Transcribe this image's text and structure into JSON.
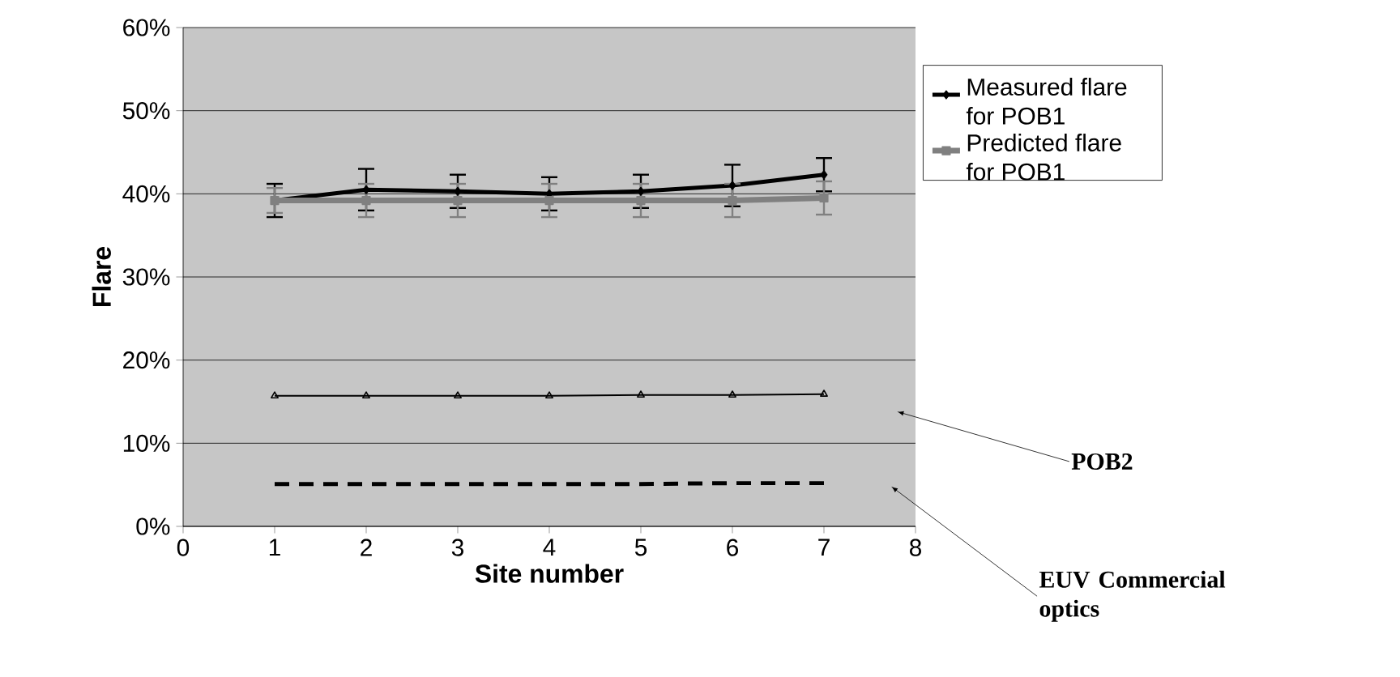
{
  "chart_data": {
    "type": "line",
    "xlabel": "Site number",
    "ylabel": "Flare",
    "xlim": [
      0,
      8
    ],
    "xticks": [
      0,
      1,
      2,
      3,
      4,
      5,
      6,
      7,
      8
    ],
    "ylim": [
      0,
      60
    ],
    "yticks": [
      {
        "value": 0,
        "label": "0%"
      },
      {
        "value": 10,
        "label": "10%"
      },
      {
        "value": 20,
        "label": "20%"
      },
      {
        "value": 30,
        "label": "30%"
      },
      {
        "value": 40,
        "label": "40%"
      },
      {
        "value": 50,
        "label": "50%"
      },
      {
        "value": 60,
        "label": "60%"
      }
    ],
    "x": [
      1,
      2,
      3,
      4,
      5,
      6,
      7
    ],
    "grid": "y",
    "legend": "right",
    "series": [
      {
        "name": "Measured flare for POB1",
        "color": "#000000",
        "marker": "diamond",
        "values": [
          39.2,
          40.5,
          40.3,
          40.0,
          40.3,
          41.0,
          42.3
        ],
        "errors": [
          2,
          2.5,
          2,
          2,
          2,
          2.5,
          2
        ]
      },
      {
        "name": "Predicted flare for POB1",
        "color": "#808080",
        "marker": "square",
        "values": [
          39.2,
          39.2,
          39.2,
          39.2,
          39.2,
          39.2,
          39.5
        ],
        "errors": [
          1.5,
          2,
          2,
          2,
          2,
          2,
          2
        ]
      },
      {
        "color": "#000000",
        "marker": "triangle",
        "values": [
          15.7,
          15.7,
          15.7,
          15.7,
          15.8,
          15.8,
          15.9
        ]
      },
      {
        "color": "#000000",
        "marker": "none",
        "line_style": "dashed",
        "values": [
          5.1,
          5.1,
          5.1,
          5.1,
          5.1,
          5.2,
          5.2
        ]
      }
    ],
    "annotations": [
      "POB2",
      "EUV Commercial optics"
    ]
  }
}
